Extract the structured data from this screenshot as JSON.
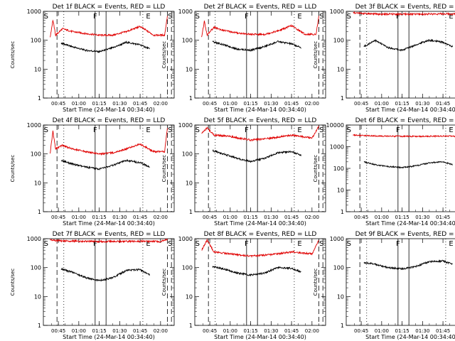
{
  "chart_data": [
    {
      "type": "line",
      "title": "Det 1f BLACK = Events, RED = LLD",
      "xlabel": "Start Time (24-Mar-14 00:34:40)",
      "ylabel": "Counts/sec",
      "ylim": [
        1,
        1000
      ],
      "yscale": "log",
      "x_ticks": [
        "00:45",
        "01:00",
        "01:15",
        "01:30",
        "01:45",
        "02:00"
      ],
      "y_ticks": [
        "1",
        "10",
        "100",
        "1000"
      ],
      "markers": [
        "S",
        "F",
        "E",
        "S"
      ],
      "series": [
        {
          "name": "Events",
          "color": "#000000",
          "x": [
            "00:47",
            "00:55",
            "01:05",
            "01:15",
            "01:25",
            "01:35",
            "01:45",
            "01:52"
          ],
          "values": [
            80,
            60,
            45,
            40,
            55,
            85,
            70,
            50
          ]
        },
        {
          "name": "LLD",
          "color": "#e00000",
          "x": [
            "00:39",
            "00:41",
            "00:43",
            "00:48",
            "00:55",
            "01:05",
            "01:15",
            "01:25",
            "01:35",
            "01:45",
            "01:55",
            "02:03",
            "02:05"
          ],
          "values": [
            130,
            500,
            150,
            250,
            200,
            170,
            150,
            150,
            200,
            300,
            150,
            150,
            700
          ]
        }
      ]
    },
    {
      "type": "line",
      "title": "Det 2f BLACK = Events, RED = LLD",
      "xlabel": "Start Time (24-Mar-14 00:34:40)",
      "ylabel": "Counts/sec",
      "ylim": [
        1,
        1000
      ],
      "yscale": "log",
      "x_ticks": [
        "00:45",
        "01:00",
        "01:15",
        "01:30",
        "01:45",
        "02:00"
      ],
      "y_ticks": [
        "1",
        "10",
        "100",
        "1000"
      ],
      "markers": [
        "S",
        "F",
        "E",
        "S"
      ],
      "series": [
        {
          "name": "Events",
          "color": "#000000",
          "x": [
            "00:47",
            "00:55",
            "01:05",
            "01:15",
            "01:25",
            "01:35",
            "01:45",
            "01:52"
          ],
          "values": [
            90,
            70,
            50,
            45,
            60,
            90,
            75,
            55
          ]
        },
        {
          "name": "LLD",
          "color": "#e00000",
          "x": [
            "00:39",
            "00:41",
            "00:43",
            "00:48",
            "00:55",
            "01:05",
            "01:15",
            "01:25",
            "01:35",
            "01:45",
            "01:55",
            "02:03",
            "02:05"
          ],
          "values": [
            130,
            450,
            150,
            280,
            220,
            180,
            160,
            160,
            210,
            320,
            160,
            160,
            700
          ]
        }
      ]
    },
    {
      "type": "line",
      "title": "Det 3f BLACK = Events, RED = LLD",
      "xlabel": "Start Time (24-Mar-14 00:34:40)",
      "ylabel": "Counts/sec",
      "ylim": [
        1,
        1000
      ],
      "yscale": "log",
      "x_ticks": [
        "00:45",
        "01:00",
        "01:15",
        "01:30",
        "01:45",
        "02:00"
      ],
      "y_ticks": [
        "1",
        "10",
        "100",
        "1000"
      ],
      "markers": [
        "S",
        "F",
        "E",
        "S"
      ],
      "series": [
        {
          "name": "Events",
          "color": "#000000",
          "x": [
            "00:47",
            "00:55",
            "01:05",
            "01:15",
            "01:25",
            "01:35",
            "01:45",
            "01:52"
          ],
          "values": [
            60,
            100,
            55,
            45,
            70,
            100,
            85,
            60
          ]
        },
        {
          "name": "LLD",
          "color": "#e00000",
          "x": [
            "00:39",
            "00:45",
            "01:00",
            "01:15",
            "01:30",
            "01:45",
            "02:00",
            "02:05"
          ],
          "values": [
            900,
            850,
            800,
            800,
            800,
            820,
            800,
            950
          ]
        }
      ]
    },
    {
      "type": "line",
      "title": "Det 4f BLACK = Events, RED = LLD",
      "xlabel": "Start Time (24-Mar-14 00:34:40)",
      "ylabel": "Counts/sec",
      "ylim": [
        1,
        1000
      ],
      "yscale": "log",
      "x_ticks": [
        "00:45",
        "01:00",
        "01:15",
        "01:30",
        "01:45",
        "02:00"
      ],
      "y_ticks": [
        "1",
        "10",
        "100",
        "1000"
      ],
      "markers": [
        "S",
        "F",
        "E",
        "S"
      ],
      "series": [
        {
          "name": "Events",
          "color": "#000000",
          "x": [
            "00:47",
            "00:55",
            "01:05",
            "01:15",
            "01:25",
            "01:35",
            "01:45",
            "01:52"
          ],
          "values": [
            60,
            45,
            35,
            30,
            40,
            60,
            50,
            35
          ]
        },
        {
          "name": "LLD",
          "color": "#e00000",
          "x": [
            "00:39",
            "00:41",
            "00:43",
            "00:48",
            "00:55",
            "01:05",
            "01:15",
            "01:25",
            "01:35",
            "01:45",
            "01:55",
            "02:03",
            "02:05"
          ],
          "values": [
            110,
            600,
            150,
            200,
            150,
            120,
            100,
            110,
            150,
            220,
            120,
            120,
            800
          ]
        }
      ]
    },
    {
      "type": "line",
      "title": "Det 5f BLACK = Events, RED = LLD",
      "xlabel": "Start Time (24-Mar-14 00:34:40)",
      "ylabel": "Counts/sec",
      "ylim": [
        1,
        1000
      ],
      "yscale": "log",
      "x_ticks": [
        "00:45",
        "01:00",
        "01:15",
        "01:30",
        "01:45",
        "02:00"
      ],
      "y_ticks": [
        "1",
        "10",
        "100",
        "1000"
      ],
      "markers": [
        "S",
        "F",
        "E",
        "S"
      ],
      "series": [
        {
          "name": "Events",
          "color": "#000000",
          "x": [
            "00:47",
            "00:55",
            "01:05",
            "01:15",
            "01:25",
            "01:35",
            "01:45",
            "01:52"
          ],
          "values": [
            130,
            100,
            70,
            55,
            70,
            110,
            120,
            90
          ]
        },
        {
          "name": "LLD",
          "color": "#e00000",
          "x": [
            "00:39",
            "00:43",
            "00:48",
            "01:00",
            "01:15",
            "01:30",
            "01:45",
            "02:00",
            "02:05"
          ],
          "values": [
            500,
            800,
            450,
            400,
            300,
            350,
            450,
            350,
            900
          ]
        }
      ]
    },
    {
      "type": "line",
      "title": "Det 6f BLACK = Events, RED = LLD",
      "xlabel": "Start Time (24-Mar-14 00:34:40)",
      "ylabel": "Counts/sec",
      "ylim": [
        1,
        10000
      ],
      "yscale": "log",
      "x_ticks": [
        "00:45",
        "01:00",
        "01:15",
        "01:30",
        "01:45",
        "02:00"
      ],
      "y_ticks": [
        "1",
        "10",
        "100",
        "1000",
        "10000"
      ],
      "markers": [
        "S",
        "F",
        "E",
        "S"
      ],
      "series": [
        {
          "name": "Events",
          "color": "#000000",
          "x": [
            "00:47",
            "00:55",
            "01:05",
            "01:15",
            "01:25",
            "01:35",
            "01:45",
            "01:52"
          ],
          "values": [
            200,
            150,
            120,
            110,
            130,
            180,
            200,
            150
          ]
        },
        {
          "name": "LLD",
          "color": "#e00000",
          "x": [
            "00:39",
            "00:45",
            "01:00",
            "01:15",
            "01:30",
            "01:45",
            "02:00",
            "02:05"
          ],
          "values": [
            3500,
            3300,
            3100,
            3000,
            3000,
            3100,
            3000,
            5000
          ]
        }
      ]
    },
    {
      "type": "line",
      "title": "Det 7f BLACK = Events, RED = LLD",
      "xlabel": "Start Time (24-Mar-14 00:34:40)",
      "ylabel": "Counts/sec",
      "ylim": [
        1,
        1000
      ],
      "yscale": "log",
      "x_ticks": [
        "00:45",
        "01:00",
        "01:15",
        "01:30",
        "01:45",
        "02:00"
      ],
      "y_ticks": [
        "1",
        "10",
        "100",
        "1000"
      ],
      "markers": [
        "S",
        "F",
        "E",
        "S"
      ],
      "series": [
        {
          "name": "Events",
          "color": "#000000",
          "x": [
            "00:47",
            "00:55",
            "01:05",
            "01:15",
            "01:25",
            "01:35",
            "01:45",
            "01:52"
          ],
          "values": [
            90,
            70,
            45,
            35,
            45,
            80,
            85,
            55
          ]
        },
        {
          "name": "LLD",
          "color": "#e00000",
          "x": [
            "00:39",
            "00:45",
            "01:00",
            "01:15",
            "01:30",
            "01:45",
            "02:00",
            "02:05"
          ],
          "values": [
            900,
            850,
            820,
            800,
            800,
            820,
            800,
            950
          ]
        }
      ]
    },
    {
      "type": "line",
      "title": "Det 8f BLACK = Events, RED = LLD",
      "xlabel": "Start Time (24-Mar-14 00:34:40)",
      "ylabel": "Counts/sec",
      "ylim": [
        1,
        1000
      ],
      "yscale": "log",
      "x_ticks": [
        "00:45",
        "01:00",
        "01:15",
        "01:30",
        "01:45",
        "02:00"
      ],
      "y_ticks": [
        "1",
        "10",
        "100",
        "1000"
      ],
      "markers": [
        "S",
        "F",
        "E",
        "S"
      ],
      "series": [
        {
          "name": "Events",
          "color": "#000000",
          "x": [
            "00:47",
            "00:55",
            "01:05",
            "01:15",
            "01:25",
            "01:35",
            "01:45",
            "01:52"
          ],
          "values": [
            110,
            90,
            65,
            55,
            65,
            100,
            95,
            70
          ]
        },
        {
          "name": "LLD",
          "color": "#e00000",
          "x": [
            "00:39",
            "00:43",
            "00:48",
            "01:00",
            "01:15",
            "01:30",
            "01:45",
            "02:00",
            "02:05"
          ],
          "values": [
            400,
            900,
            350,
            300,
            250,
            280,
            350,
            300,
            900
          ]
        }
      ]
    },
    {
      "type": "line",
      "title": "Det 9f BLACK = Events, RED = LLD",
      "xlabel": "Start Time (24-Mar-14 00:34:40)",
      "ylabel": "Counts/sec",
      "ylim": [
        1,
        1000
      ],
      "yscale": "log",
      "x_ticks": [
        "00:45",
        "01:00",
        "01:15",
        "01:30",
        "01:45",
        "02:00"
      ],
      "y_ticks": [
        "1",
        "10",
        "100",
        "1000"
      ],
      "markers": [
        "S",
        "F",
        "E",
        "S"
      ],
      "series": [
        {
          "name": "Events",
          "color": "#000000",
          "x": [
            "00:47",
            "00:55",
            "01:05",
            "01:15",
            "01:25",
            "01:35",
            "01:45",
            "01:52"
          ],
          "values": [
            150,
            130,
            100,
            90,
            110,
            160,
            170,
            130
          ]
        }
      ]
    }
  ]
}
